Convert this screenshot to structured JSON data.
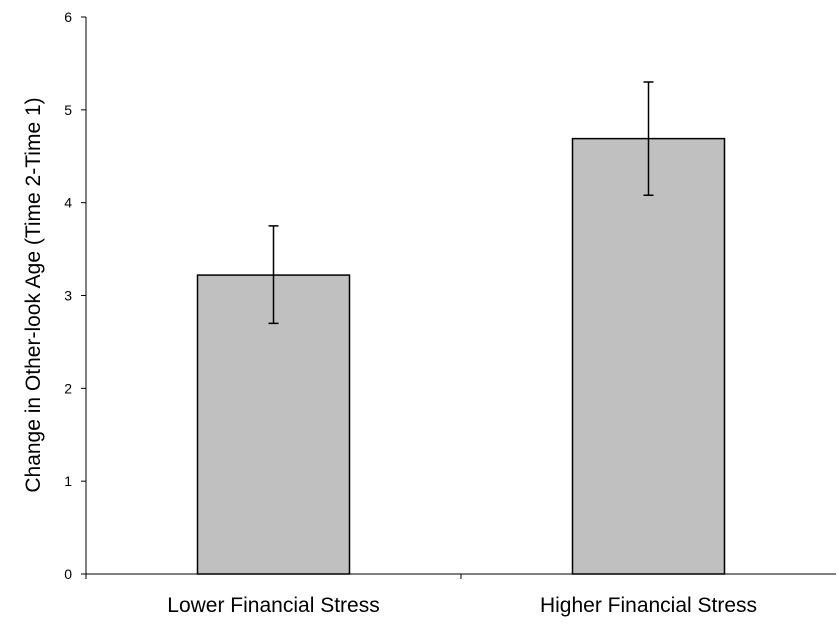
{
  "chart_data": {
    "type": "bar",
    "title": "",
    "xlabel": "",
    "ylabel": "Change in Other-look Age (Time 2-Time 1)",
    "categories": [
      "Lower Financial Stress",
      "Higher Financial Stress"
    ],
    "values": [
      3.22,
      4.69
    ],
    "error_upper": [
      3.75,
      5.3
    ],
    "error_lower": [
      2.7,
      4.08
    ],
    "ylim": [
      0,
      6
    ],
    "yticks": [
      0,
      1,
      2,
      3,
      4,
      5,
      6
    ],
    "grid": false,
    "legend": "none",
    "colors": {
      "bar_fill": "#c0c0c0",
      "bar_stroke": "#000000",
      "axis": "#000000",
      "error_bar": "#000000"
    }
  }
}
